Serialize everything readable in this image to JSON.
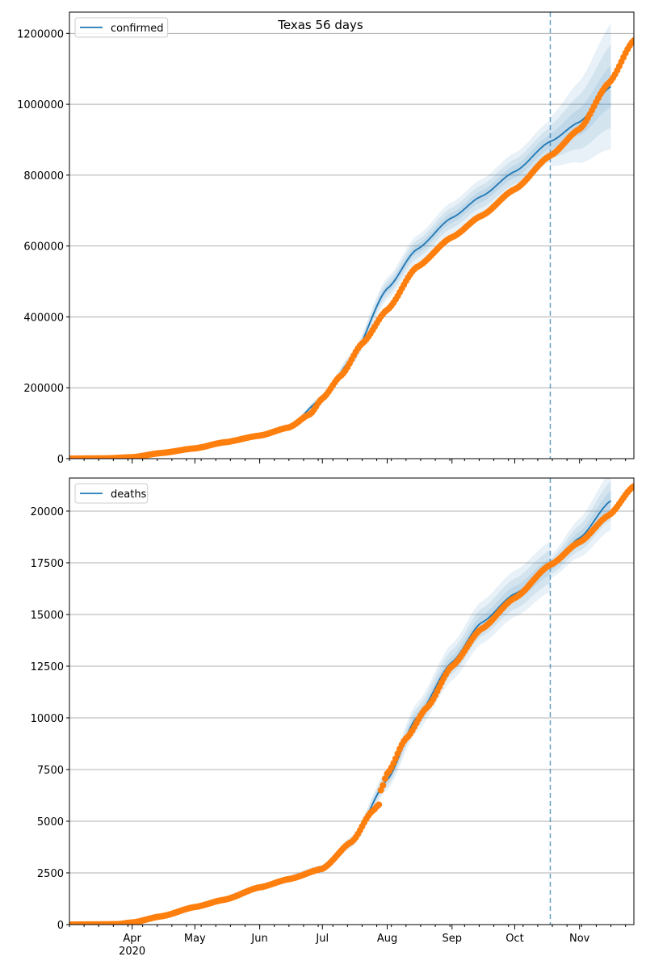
{
  "figure": {
    "title": "Texas 56 days"
  },
  "colors": {
    "model": "#1f77b4",
    "observed": "#ff7f0e",
    "band": "#1f77b4",
    "grid": "#b0b0b0",
    "axes": "#000000"
  },
  "chart_data": [
    {
      "type": "line",
      "title": "Texas 56 days",
      "xlabel": "",
      "ylabel": "",
      "x_axis": {
        "type": "date",
        "range": [
          "2020-03-02",
          "2020-11-27"
        ],
        "ticks": [
          {
            "date": "2020-04-01",
            "label": "Apr",
            "sublabel": "2020"
          },
          {
            "date": "2020-05-01",
            "label": "May"
          },
          {
            "date": "2020-06-01",
            "label": "Jun"
          },
          {
            "date": "2020-07-01",
            "label": "Jul"
          },
          {
            "date": "2020-08-01",
            "label": "Aug"
          },
          {
            "date": "2020-09-01",
            "label": "Sep"
          },
          {
            "date": "2020-10-01",
            "label": "Oct"
          },
          {
            "date": "2020-11-01",
            "label": "Nov"
          }
        ]
      },
      "ylim": [
        0,
        1260000
      ],
      "yticks": [
        0,
        200000,
        400000,
        600000,
        800000,
        1000000,
        1200000
      ],
      "grid": "horizontal",
      "legend": {
        "placement": "top-left",
        "entries": [
          "confirmed"
        ]
      },
      "vline": {
        "date": "2020-10-18",
        "style": "dashed"
      },
      "series": [
        {
          "name": "confirmed",
          "kind": "model",
          "points": [
            [
              "2020-03-02",
              0
            ],
            [
              "2020-04-01",
              4000
            ],
            [
              "2020-05-01",
              28000
            ],
            [
              "2020-06-01",
              65000
            ],
            [
              "2020-06-15",
              90000
            ],
            [
              "2020-07-01",
              170000
            ],
            [
              "2020-07-15",
              280000
            ],
            [
              "2020-08-01",
              480000
            ],
            [
              "2020-08-15",
              590000
            ],
            [
              "2020-09-01",
              680000
            ],
            [
              "2020-09-15",
              740000
            ],
            [
              "2020-10-01",
              810000
            ],
            [
              "2020-10-18",
              895000
            ]
          ],
          "points_forecast": [
            [
              "2020-10-18",
              895000
            ],
            [
              "2020-11-01",
              950000
            ],
            [
              "2020-11-16",
              1050000
            ]
          ],
          "band_rel_spread_observed": 0.065,
          "band_rel_spread_forecast": 0.17
        },
        {
          "kind": "observed",
          "points": [
            [
              "2020-03-02",
              0
            ],
            [
              "2020-03-20",
              1000
            ],
            [
              "2020-04-01",
              4000
            ],
            [
              "2020-04-15",
              16000
            ],
            [
              "2020-05-01",
              29000
            ],
            [
              "2020-05-15",
              46000
            ],
            [
              "2020-06-01",
              65000
            ],
            [
              "2020-06-15",
              88000
            ],
            [
              "2020-06-25",
              125000
            ],
            [
              "2020-07-01",
              170000
            ],
            [
              "2020-07-10",
              235000
            ],
            [
              "2020-07-20",
              325000
            ],
            [
              "2020-08-01",
              420000
            ],
            [
              "2020-08-15",
              540000
            ],
            [
              "2020-09-01",
              625000
            ],
            [
              "2020-09-15",
              685000
            ],
            [
              "2020-10-01",
              760000
            ],
            [
              "2020-10-18",
              855000
            ],
            [
              "2020-11-01",
              930000
            ],
            [
              "2020-11-15",
              1060000
            ],
            [
              "2020-11-27",
              1180000
            ]
          ]
        }
      ]
    },
    {
      "type": "line",
      "title": "",
      "xlabel": "",
      "ylabel": "",
      "x_axis": {
        "type": "date",
        "range": [
          "2020-03-02",
          "2020-11-27"
        ],
        "ticks": [
          {
            "date": "2020-04-01",
            "label": "Apr",
            "sublabel": "2020"
          },
          {
            "date": "2020-05-01",
            "label": "May"
          },
          {
            "date": "2020-06-01",
            "label": "Jun"
          },
          {
            "date": "2020-07-01",
            "label": "Jul"
          },
          {
            "date": "2020-08-01",
            "label": "Aug"
          },
          {
            "date": "2020-09-01",
            "label": "Sep"
          },
          {
            "date": "2020-10-01",
            "label": "Oct"
          },
          {
            "date": "2020-11-01",
            "label": "Nov"
          }
        ]
      },
      "ylim": [
        0,
        21600
      ],
      "yticks": [
        0,
        2500,
        5000,
        7500,
        10000,
        12500,
        15000,
        17500,
        20000
      ],
      "grid": "horizontal",
      "legend": {
        "placement": "top-left",
        "entries": [
          "deaths"
        ]
      },
      "vline": {
        "date": "2020-10-18",
        "style": "dashed"
      },
      "series": [
        {
          "name": "deaths",
          "kind": "model",
          "points": [
            [
              "2020-03-02",
              0
            ],
            [
              "2020-04-01",
              100
            ],
            [
              "2020-05-01",
              800
            ],
            [
              "2020-06-01",
              1800
            ],
            [
              "2020-07-01",
              2700
            ],
            [
              "2020-07-15",
              4000
            ],
            [
              "2020-08-01",
              7000
            ],
            [
              "2020-08-15",
              10000
            ],
            [
              "2020-09-01",
              12700
            ],
            [
              "2020-09-15",
              14600
            ],
            [
              "2020-10-01",
              16000
            ],
            [
              "2020-10-18",
              17300
            ]
          ],
          "points_forecast": [
            [
              "2020-10-18",
              17300
            ],
            [
              "2020-11-01",
              18700
            ],
            [
              "2020-11-16",
              20500
            ]
          ],
          "band_rel_spread_observed": 0.07,
          "band_rel_spread_forecast": 0.07
        },
        {
          "kind": "observed",
          "points": [
            [
              "2020-03-02",
              0
            ],
            [
              "2020-03-25",
              20
            ],
            [
              "2020-04-01",
              100
            ],
            [
              "2020-04-15",
              400
            ],
            [
              "2020-05-01",
              850
            ],
            [
              "2020-05-15",
              1200
            ],
            [
              "2020-06-01",
              1800
            ],
            [
              "2020-06-15",
              2200
            ],
            [
              "2020-07-01",
              2700
            ],
            [
              "2020-07-15",
              4000
            ],
            [
              "2020-07-25",
              5500
            ],
            [
              "2020-07-28",
              5800
            ],
            [
              "2020-07-29",
              6500
            ],
            [
              "2020-08-01",
              7300
            ],
            [
              "2020-08-10",
              9000
            ],
            [
              "2020-08-20",
              10500
            ],
            [
              "2020-09-01",
              12500
            ],
            [
              "2020-09-15",
              14300
            ],
            [
              "2020-10-01",
              15800
            ],
            [
              "2020-10-18",
              17400
            ],
            [
              "2020-11-01",
              18500
            ],
            [
              "2020-11-15",
              19800
            ],
            [
              "2020-11-27",
              21200
            ]
          ]
        }
      ]
    }
  ]
}
